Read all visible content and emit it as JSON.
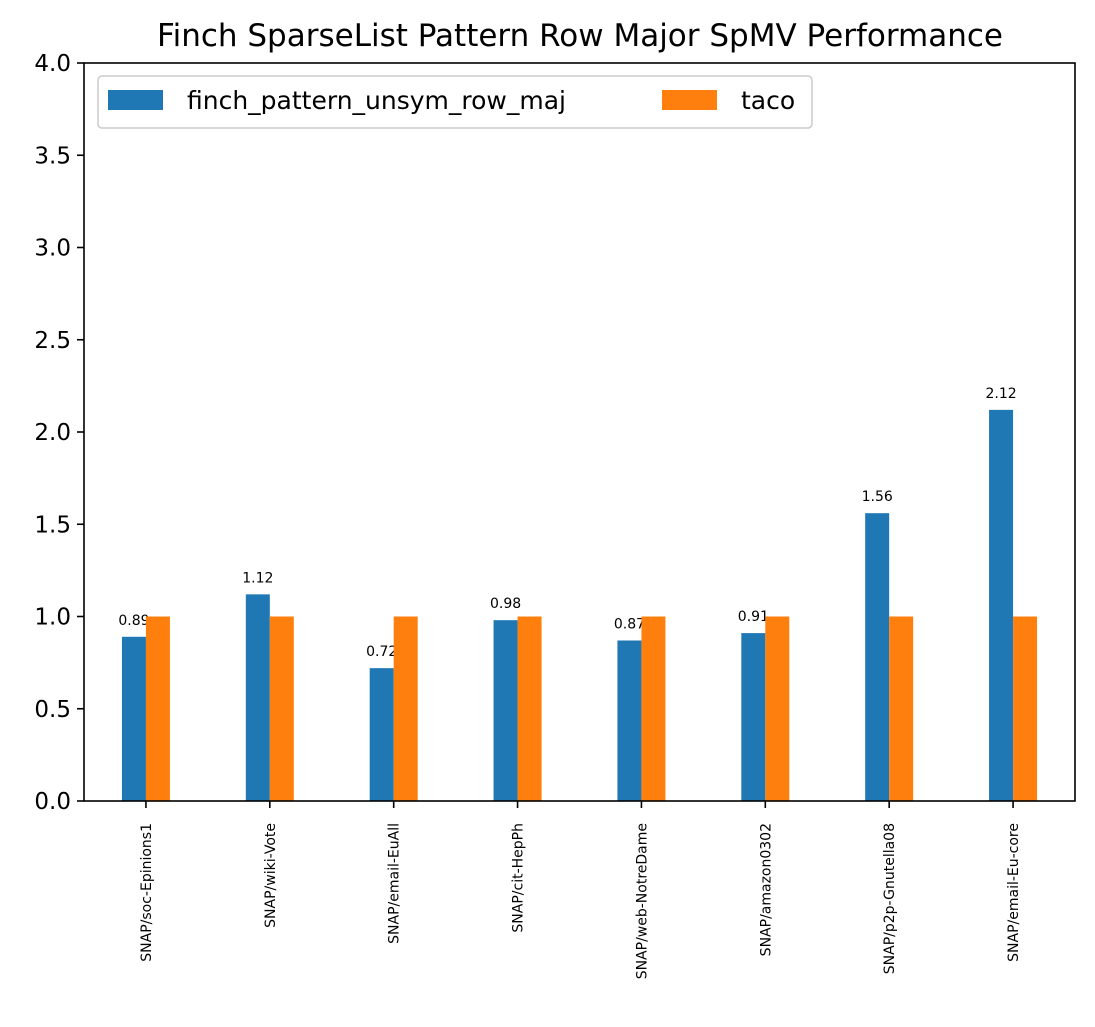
{
  "chart_data": {
    "type": "bar",
    "title": "Finch SparseList Pattern Row Major SpMV Performance",
    "xlabel": "",
    "ylabel": "",
    "ylim": [
      0,
      4.0
    ],
    "yticks": [
      "0.0",
      "0.5",
      "1.0",
      "1.5",
      "2.0",
      "2.5",
      "3.0",
      "3.5",
      "4.0"
    ],
    "categories": [
      "SNAP/soc-Epinions1",
      "SNAP/wiki-Vote",
      "SNAP/email-EuAll",
      "SNAP/cit-HepPh",
      "SNAP/web-NotreDame",
      "SNAP/amazon0302",
      "SNAP/p2p-Gnutella08",
      "SNAP/email-Eu-core"
    ],
    "series": [
      {
        "name": "finch_pattern_unsym_row_maj",
        "color": "#1f77b4",
        "values": [
          0.89,
          1.12,
          0.72,
          0.98,
          0.87,
          0.91,
          1.56,
          2.12
        ],
        "labels": [
          "0.89",
          "1.12",
          "0.72",
          "0.98",
          "0.87",
          "0.91",
          "1.56",
          "2.12"
        ]
      },
      {
        "name": "taco",
        "color": "#ff7f0e",
        "values": [
          1.0,
          1.0,
          1.0,
          1.0,
          1.0,
          1.0,
          1.0,
          1.0
        ]
      }
    ],
    "legend": {
      "placement": "upper-left",
      "columns": 2
    },
    "grid": false
  }
}
